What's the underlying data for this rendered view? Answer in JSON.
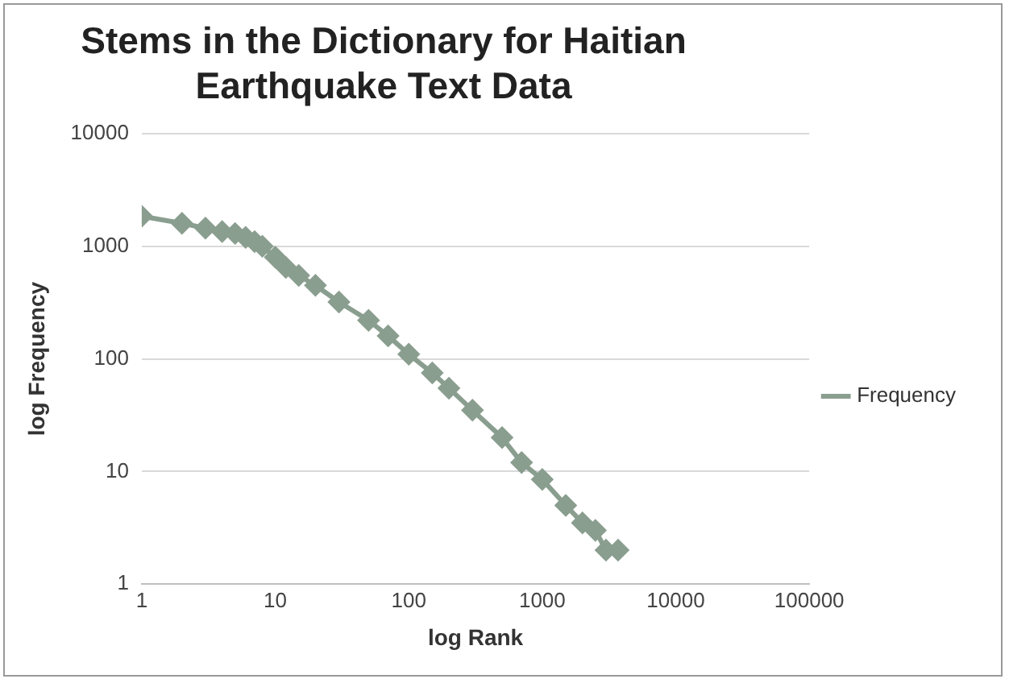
{
  "chart_data": {
    "type": "line",
    "title": "Stems in the Dictionary for Haitian Earthquake Text Data",
    "xlabel": "log Rank",
    "ylabel": "log Frequency",
    "log": "xy",
    "grid": "y",
    "legend": "right",
    "marker": "diamond",
    "x": [
      1,
      2,
      3,
      4,
      5,
      6,
      7,
      8,
      10,
      12,
      15,
      20,
      30,
      50,
      70,
      100,
      150,
      200,
      300,
      500,
      700,
      1000,
      1500,
      2000,
      2500,
      3000,
      3700
    ],
    "series": [
      {
        "name": "Frequency",
        "color": "#8a9e8f",
        "values": [
          1850,
          1600,
          1450,
          1350,
          1300,
          1200,
          1100,
          1000,
          800,
          650,
          550,
          450,
          320,
          220,
          160,
          110,
          75,
          55,
          35,
          20,
          12,
          8.5,
          5,
          3.5,
          3,
          2,
          2
        ]
      }
    ],
    "xlim": [
      1,
      100000
    ],
    "xticks": [
      1,
      10,
      100,
      1000,
      10000,
      100000
    ],
    "ylim": [
      1,
      10000
    ],
    "yticks": [
      1,
      10,
      100,
      1000,
      10000
    ]
  }
}
